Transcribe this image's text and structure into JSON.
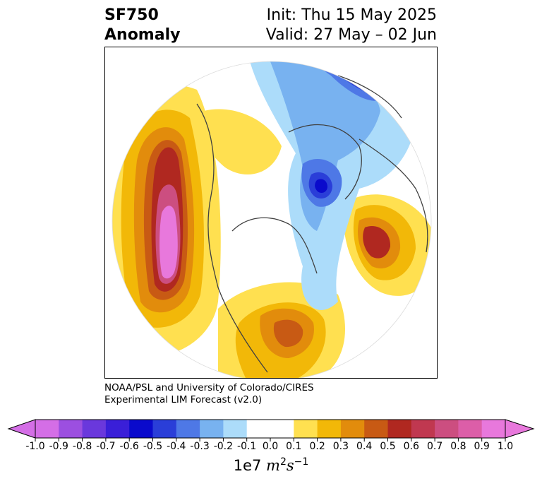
{
  "title": {
    "variable": "SF750",
    "kind": "Anomaly",
    "init": "Init: Thu 15 May 2025",
    "valid": "Valid: 27 May – 02 Jun"
  },
  "credit": {
    "line1": "NOAA/PSL and University of Colorado/CIRES",
    "line2": "Experimental LIM Forecast (v2.0)"
  },
  "colorbar": {
    "levels": [
      "-1.0",
      "-0.9",
      "-0.8",
      "-0.7",
      "-0.6",
      "-0.5",
      "-0.4",
      "-0.3",
      "-0.2",
      "-0.1",
      "0.0",
      "0.1",
      "0.2",
      "0.3",
      "0.4",
      "0.5",
      "0.6",
      "0.7",
      "0.8",
      "0.9",
      "1.0"
    ],
    "colors": [
      "#d46ee6",
      "#9c4fe0",
      "#6a38dc",
      "#3a1fd8",
      "#0a0acc",
      "#2a3ed8",
      "#4e78e6",
      "#78b2f0",
      "#acdcfa",
      "#ffffff",
      "#ffffff",
      "#ffe050",
      "#f2b808",
      "#e28c0c",
      "#c85a14",
      "#b02820",
      "#c03850",
      "#cc4e80",
      "#dc5ea8",
      "#e878dc"
    ],
    "low_extend_color": "#d46ee6",
    "high_extend_color": "#e878dc",
    "units_prefix": "1e7",
    "units_base_m": "m",
    "units_exp_m": "2",
    "units_base_s": "s",
    "units_exp_s": "−1"
  },
  "map": {
    "projection": "north-polar-stereographic",
    "features": [
      "coastlines",
      "country-borders",
      "us-state-borders"
    ],
    "anomalies": [
      {
        "region": "NE Pacific / Gulf of Alaska",
        "sign": "positive",
        "peak": 1.0
      },
      {
        "region": "Eastern North America",
        "sign": "positive",
        "peak": 0.5
      },
      {
        "region": "Eastern Europe / Caspian",
        "sign": "positive",
        "peak": 0.6
      },
      {
        "region": "Barents-Kara Seas",
        "sign": "negative",
        "peak": -0.6
      },
      {
        "region": "Northern Siberia",
        "sign": "negative",
        "peak": -0.5
      },
      {
        "region": "Canada / Central Arctic",
        "sign": "positive",
        "peak": 0.2
      }
    ]
  }
}
